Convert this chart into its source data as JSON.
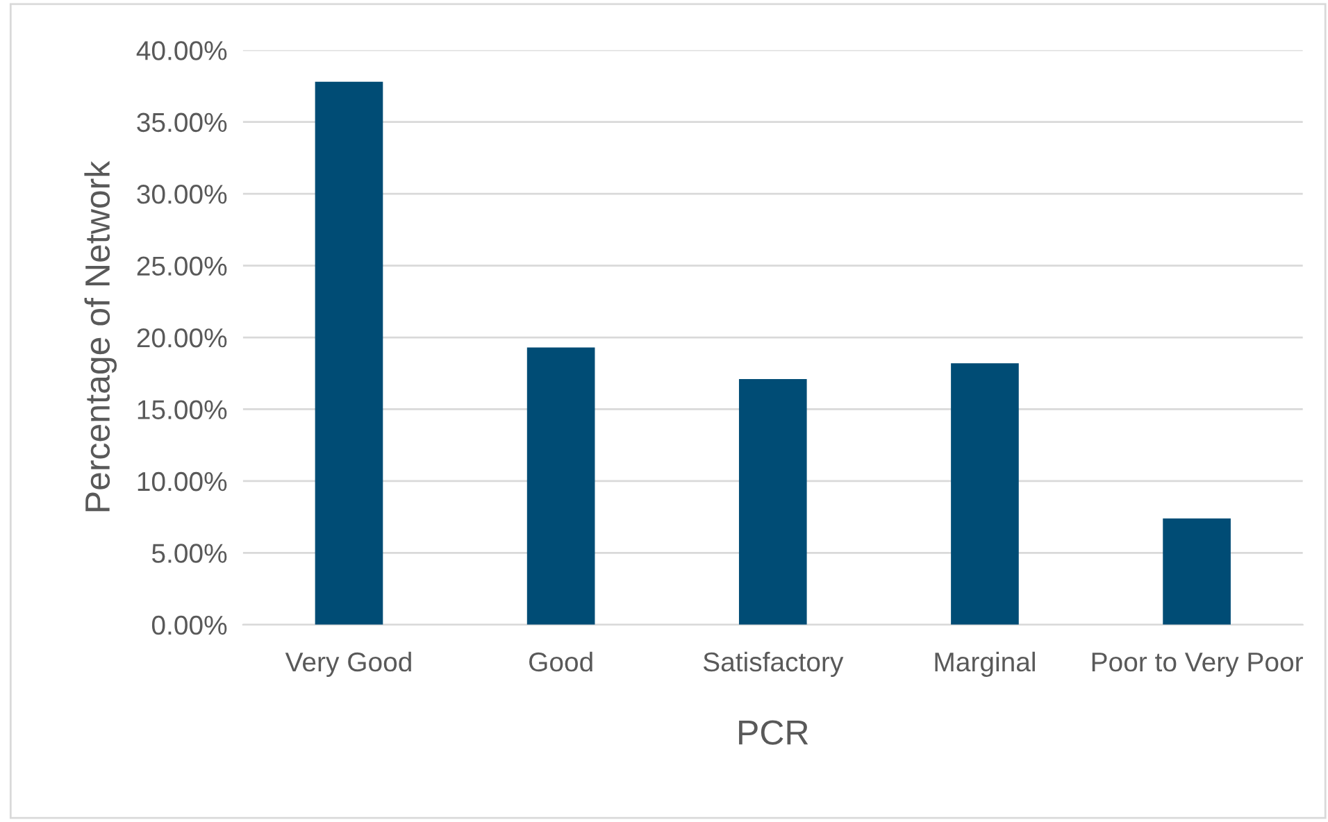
{
  "chart_data": {
    "type": "bar",
    "xlabel": "PCR",
    "ylabel": "Percentage of Network",
    "categories": [
      "Very Good",
      "Good",
      "Satisfactory",
      "Marginal",
      "Poor to Very Poor"
    ],
    "values": [
      37.8,
      19.3,
      17.1,
      18.2,
      7.4
    ],
    "color": "#004c75",
    "ylim": [
      0,
      40
    ],
    "yticks": [
      {
        "value": 0,
        "label": "0.00%"
      },
      {
        "value": 5,
        "label": "5.00%"
      },
      {
        "value": 10,
        "label": "10.00%"
      },
      {
        "value": 15,
        "label": "15.00%"
      },
      {
        "value": 20,
        "label": "20.00%"
      },
      {
        "value": 25,
        "label": "25.00%"
      },
      {
        "value": 30,
        "label": "30.00%"
      },
      {
        "value": 35,
        "label": "35.00%"
      },
      {
        "value": 40,
        "label": "40.00%"
      }
    ],
    "grid": "y"
  }
}
